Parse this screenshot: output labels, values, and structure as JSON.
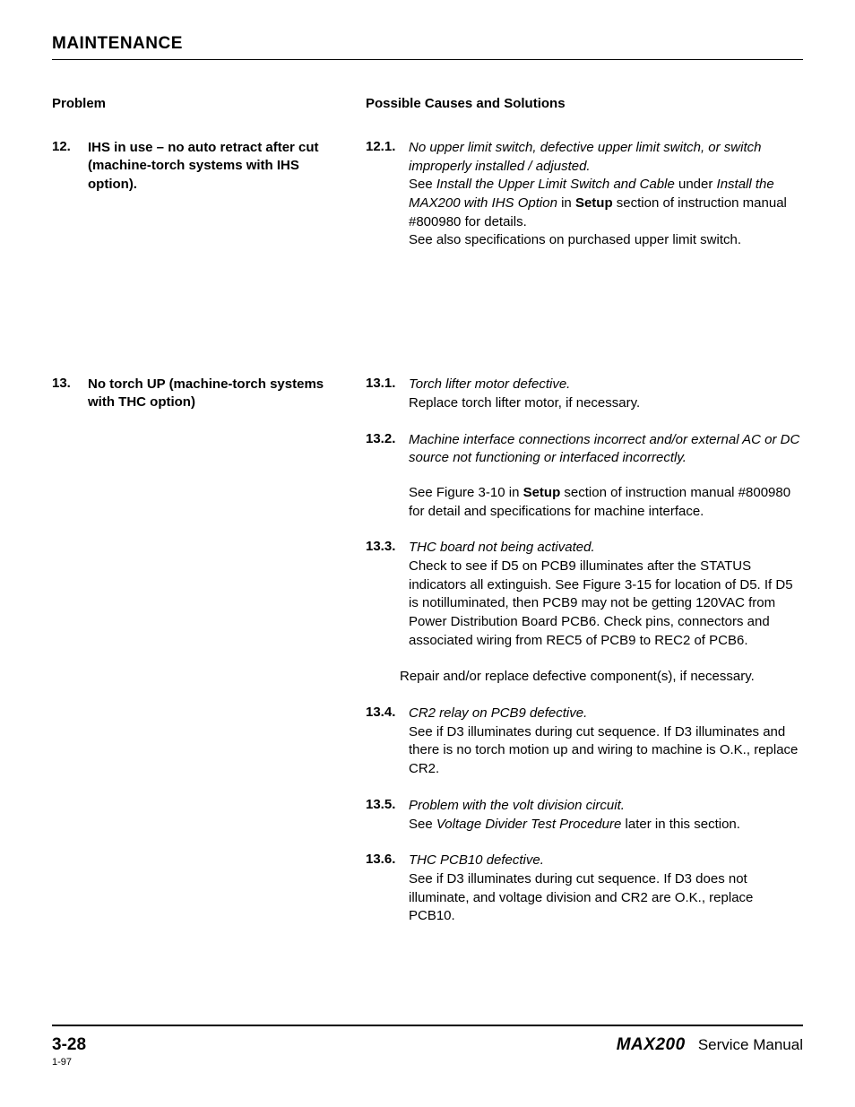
{
  "header": {
    "title": "MAINTENANCE"
  },
  "columns": {
    "problem_label": "Problem",
    "causes_label": "Possible Causes and Solutions"
  },
  "entries": [
    {
      "num": "12.",
      "problem": "IHS in use – no auto retract after cut (machine-torch systems with IHS option).",
      "causes": [
        {
          "num": "12.1.",
          "title": "No upper limit switch, defective upper limit switch, or switch improperly installed / adjusted.",
          "body_html": "See <span class='ref-italic'>Install the Upper Limit Switch and Cable</span> under <span class='ref-italic'>Install the MAX200 with IHS Option</span> in <span class='bold'>Setup</span> section of instruction manual #800980 for details.<br>See also specifications on purchased upper limit switch."
        }
      ]
    },
    {
      "num": "13.",
      "problem": "No torch UP (machine-torch systems with THC option)",
      "causes": [
        {
          "num": "13.1.",
          "title": "Torch lifter motor defective.",
          "body_html": "Replace torch lifter motor, if necessary."
        },
        {
          "num": "13.2.",
          "title": "Machine interface connections incorrect and/or external AC or DC source not functioning or interfaced incorrectly.",
          "body_html": "<div class='cause-extra'>See Figure 3-10 in <span class='bold'>Setup</span> section of instruction manual #800980 for detail and specifications for machine interface.</div>"
        },
        {
          "num": "13.3.",
          "title": "THC board not being activated.",
          "body_html": "Check to see if D5 on PCB9 illuminates after the STATUS indicators all extinguish. See Figure 3-15 for location of D5. If D5 is notilluminated, then PCB9 may not be getting 120VAC from Power Distribution Board PCB6. Check pins, connectors and associated wiring from REC5 of PCB9 to REC2 of PCB6.",
          "outer_extra": "Repair and/or replace defective component(s), if necessary."
        },
        {
          "num": "13.4.",
          "title": "CR2 relay on PCB9 defective.",
          "body_html": "See if D3 illuminates during cut sequence. If D3 illuminates and there is no torch motion up and wiring to machine is O.K., replace CR2."
        },
        {
          "num": "13.5.",
          "title": "Problem with the volt division circuit.",
          "body_html": "See <span class='ref-italic'>Voltage Divider Test Procedure</span> later in this section."
        },
        {
          "num": "13.6.",
          "title": "THC PCB10 defective.",
          "body_html": "See if D3 illuminates during cut sequence. If D3 does not illuminate, and voltage division and CR2 are O.K., replace PCB10."
        }
      ]
    }
  ],
  "footer": {
    "page_num": "3-28",
    "product": "MAX200",
    "doc_type": "Service Manual",
    "rev": "1-97"
  }
}
